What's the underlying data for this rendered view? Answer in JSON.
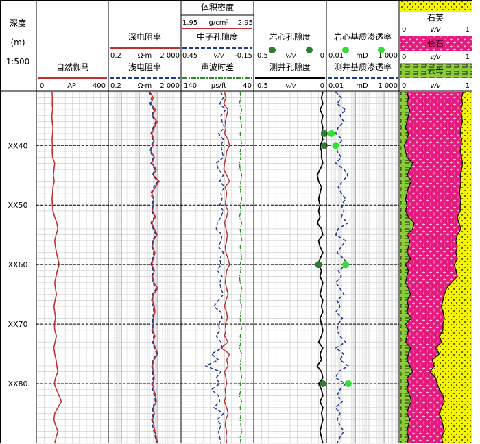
{
  "colors": {
    "gr": "#c0302e",
    "rdeep": "#c0302e",
    "rshallow": "#1f3b8f",
    "den": "#c0302e",
    "neu": "#1f3b8f",
    "ac": "#2e8b2e",
    "phi": "#000000",
    "core_phi": "#2e7d32",
    "core_k": "#33dd33",
    "logk": "#1f3b8f",
    "quartz": "#f5f500",
    "feldspar": "#e6197d",
    "mica": "#8ccc3c"
  },
  "header": {
    "depth": {
      "title": "深度",
      "unit": "(m)",
      "scale": "1:500"
    },
    "track1": {
      "name": "自然伽马",
      "min": "0",
      "unit": "API",
      "max": "400"
    },
    "track2": {
      "deep": {
        "name": "深电阻率",
        "min": "0.2",
        "unit": "Ω·m",
        "max": "2 000"
      },
      "shallow": {
        "name": "浅电阻率",
        "min": "0.2",
        "unit": "Ω·m",
        "max": "2 000"
      }
    },
    "track3": {
      "den": {
        "name": "体积密度",
        "min": "1.95",
        "unit": "g/cm³",
        "max": "2.95"
      },
      "neu": {
        "name": "中子孔隙度",
        "min": "0.45",
        "unit": "v/v",
        "max": "-0.15"
      },
      "ac": {
        "name": "声波时差",
        "min": "140",
        "unit": "μs/ft",
        "max": "40"
      }
    },
    "track4": {
      "core": {
        "name": "岩心孔隙度",
        "min": "0.5",
        "unit": "v/v",
        "max": "0"
      },
      "log": {
        "name": "测井孔隙度",
        "min": "0.5",
        "unit": "v/v",
        "max": "0"
      }
    },
    "track5": {
      "core": {
        "name": "岩心基质渗透率",
        "min": "0.01",
        "unit": "mD",
        "max": "1 000"
      },
      "log": {
        "name": "测井基质渗透率",
        "min": "0.01",
        "unit": "mD",
        "max": "1 000"
      }
    },
    "track6": {
      "quartz": {
        "name": "石英",
        "min": "0",
        "unit": "v/v",
        "max": "1"
      },
      "feldspar": {
        "name": "长石",
        "min": "0",
        "unit": "v/v",
        "max": "1"
      },
      "mica": {
        "name": "云母",
        "min": "0",
        "unit": "v/v",
        "max": "1"
      }
    }
  },
  "chart_data": {
    "type": "line",
    "depth_range": [
      "XX31",
      "XX90"
    ],
    "depth_ticks": [
      "XX40",
      "XX50",
      "XX60",
      "XX70",
      "XX80"
    ],
    "depth": [
      31,
      32,
      33,
      34,
      35,
      36,
      37,
      38,
      39,
      40,
      41,
      42,
      43,
      44,
      45,
      46,
      47,
      48,
      49,
      50,
      51,
      52,
      53,
      54,
      55,
      56,
      57,
      58,
      59,
      60,
      61,
      62,
      63,
      64,
      65,
      66,
      67,
      68,
      69,
      70,
      71,
      72,
      73,
      74,
      75,
      76,
      77,
      78,
      79,
      80,
      81,
      82,
      83,
      84,
      85,
      86,
      87,
      88,
      89,
      90
    ],
    "series": [
      {
        "name": "自然伽马",
        "unit": "API",
        "range": [
          0,
          400
        ],
        "values": [
          85,
          87,
          86,
          88,
          84,
          86,
          90,
          88,
          85,
          87,
          86,
          88,
          100,
          96,
          92,
          98,
          90,
          88,
          85,
          87,
          90,
          100,
          112,
          118,
          108,
          100,
          104,
          110,
          118,
          125,
          115,
          108,
          100,
          104,
          110,
          102,
          96,
          100,
          105,
          98,
          100,
          110,
          102,
          95,
          100,
          108,
          112,
          118,
          104,
          98,
          110,
          125,
          138,
          118,
          100,
          95,
          105,
          118,
          108,
          100
        ]
      },
      {
        "name": "深电阻率",
        "unit": "Ω·m",
        "range": [
          0.2,
          2000
        ],
        "scale": "log",
        "values": [
          40,
          60,
          45,
          80,
          55,
          100,
          70,
          50,
          65,
          55,
          45,
          70,
          50,
          90,
          60,
          130,
          80,
          50,
          65,
          60,
          55,
          80,
          50,
          70,
          100,
          60,
          55,
          75,
          60,
          50,
          70,
          55,
          65,
          110,
          60,
          55,
          70,
          75,
          60,
          65,
          55,
          75,
          60,
          80,
          110,
          65,
          55,
          60,
          70,
          55,
          65,
          80,
          90,
          60,
          70,
          55,
          65,
          75,
          90,
          110
        ]
      },
      {
        "name": "浅电阻率",
        "unit": "Ω·m",
        "range": [
          0.2,
          2000
        ],
        "scale": "log",
        "values": [
          35,
          50,
          40,
          65,
          50,
          85,
          60,
          45,
          55,
          50,
          40,
          60,
          45,
          75,
          55,
          110,
          65,
          45,
          55,
          55,
          50,
          70,
          45,
          60,
          85,
          55,
          50,
          65,
          55,
          45,
          60,
          50,
          55,
          90,
          55,
          50,
          60,
          65,
          55,
          55,
          50,
          65,
          55,
          70,
          95,
          55,
          50,
          55,
          60,
          50,
          55,
          70,
          80,
          55,
          60,
          50,
          55,
          65,
          80,
          95
        ]
      },
      {
        "name": "体积密度",
        "unit": "g/cm³",
        "range": [
          1.95,
          2.95
        ],
        "values": [
          2.55,
          2.57,
          2.54,
          2.6,
          2.58,
          2.56,
          2.57,
          2.55,
          2.6,
          2.62,
          2.58,
          2.57,
          2.55,
          2.54,
          2.58,
          2.62,
          2.56,
          2.58,
          2.57,
          2.56,
          2.6,
          2.58,
          2.55,
          2.57,
          2.59,
          2.58,
          2.56,
          2.57,
          2.6,
          2.62,
          2.58,
          2.57,
          2.56,
          2.58,
          2.6,
          2.57,
          2.55,
          2.58,
          2.59,
          2.56,
          2.57,
          2.55,
          2.6,
          2.5,
          2.62,
          2.58,
          2.6,
          2.55,
          2.57,
          2.58,
          2.56,
          2.57,
          2.55,
          2.58,
          2.6,
          2.57,
          2.56,
          2.58,
          2.57,
          2.58
        ]
      },
      {
        "name": "中子孔隙度",
        "unit": "v/v",
        "range": [
          0.45,
          -0.15
        ],
        "values": [
          0.12,
          0.1,
          0.13,
          0.08,
          0.12,
          0.11,
          0.09,
          0.14,
          0.1,
          0.12,
          0.11,
          0.1,
          0.16,
          0.14,
          0.1,
          0.13,
          0.09,
          0.12,
          0.11,
          0.13,
          0.1,
          0.12,
          0.15,
          0.16,
          0.11,
          0.12,
          0.14,
          0.1,
          0.13,
          0.12,
          0.15,
          0.11,
          0.13,
          0.12,
          0.1,
          0.14,
          0.18,
          0.12,
          0.11,
          0.14,
          0.13,
          0.16,
          0.12,
          0.11,
          0.2,
          0.14,
          0.25,
          0.12,
          0.16,
          0.13,
          0.2,
          0.14,
          0.13,
          0.18,
          0.1,
          0.15,
          0.12,
          0.14,
          0.13,
          0.12
        ]
      },
      {
        "name": "声波时差",
        "unit": "μs/ft",
        "range": [
          140,
          40
        ],
        "values": [
          58,
          57,
          59,
          56,
          58,
          57,
          56,
          58,
          57,
          56,
          58,
          57,
          59,
          58,
          56,
          57,
          58,
          57,
          56,
          58,
          57,
          59,
          56,
          58,
          57,
          56,
          58,
          57,
          56,
          58,
          57,
          59,
          58,
          56,
          57,
          58,
          56,
          57,
          58,
          57,
          56,
          58,
          57,
          59,
          56,
          57,
          58,
          57,
          56,
          58,
          57,
          59,
          56,
          58,
          57,
          58,
          57,
          56,
          58,
          57
        ]
      },
      {
        "name": "测井孔隙度",
        "unit": "v/v",
        "range": [
          0.5,
          0
        ],
        "values": [
          0.02,
          0.03,
          0.02,
          0.04,
          0.02,
          0.03,
          0.02,
          0.03,
          0.02,
          0.04,
          0.03,
          0.03,
          0.02,
          0.04,
          0.06,
          0.05,
          0.03,
          0.04,
          0.05,
          0.04,
          0.05,
          0.04,
          0.06,
          0.03,
          0.02,
          0.05,
          0.04,
          0.02,
          0.04,
          0.05,
          0.03,
          0.04,
          0.02,
          0.03,
          0.04,
          0.02,
          0.03,
          0.02,
          0.04,
          0.03,
          0.02,
          0.03,
          0.05,
          0.02,
          0.04,
          0.03,
          0.06,
          0.03,
          0.02,
          0.05,
          0.03,
          0.02,
          0.04,
          0.02,
          0.03,
          0.02,
          0.03,
          0.04,
          0.03,
          0.02
        ]
      },
      {
        "name": "测井基质渗透率",
        "unit": "mD",
        "range": [
          0.01,
          1000
        ],
        "scale": "log",
        "values": [
          0.04,
          0.1,
          0.05,
          0.2,
          0.08,
          0.15,
          0.06,
          0.04,
          0.12,
          0.06,
          0.05,
          0.1,
          0.04,
          0.15,
          0.3,
          0.12,
          0.06,
          0.1,
          0.2,
          0.1,
          0.15,
          0.1,
          0.3,
          0.06,
          0.04,
          0.2,
          0.1,
          0.05,
          0.15,
          0.25,
          0.06,
          0.1,
          0.04,
          0.08,
          0.15,
          0.05,
          0.08,
          0.04,
          0.12,
          0.06,
          0.05,
          0.08,
          0.2,
          0.04,
          0.15,
          0.08,
          0.3,
          0.06,
          0.04,
          0.2,
          0.08,
          0.05,
          0.12,
          0.04,
          0.08,
          0.05,
          0.08,
          0.15,
          0.08,
          0.05
        ]
      },
      {
        "name": "云母",
        "unit": "v/v",
        "range": [
          0,
          1
        ],
        "cumulative": true,
        "values": [
          0.1,
          0.12,
          0.1,
          0.14,
          0.12,
          0.1,
          0.08,
          0.12,
          0.1,
          0.06,
          0.08,
          0.1,
          0.18,
          0.14,
          0.1,
          0.16,
          0.12,
          0.1,
          0.08,
          0.1,
          0.08,
          0.12,
          0.2,
          0.18,
          0.1,
          0.14,
          0.12,
          0.1,
          0.15,
          0.08,
          0.12,
          0.1,
          0.08,
          0.12,
          0.15,
          0.1,
          0.12,
          0.1,
          0.16,
          0.08,
          0.12,
          0.1,
          0.08,
          0.15,
          0.12,
          0.1,
          0.14,
          0.18,
          0.1,
          0.12,
          0.1,
          0.14,
          0.16,
          0.12,
          0.1,
          0.14,
          0.12,
          0.1,
          0.12,
          0.1
        ]
      },
      {
        "name": "长石",
        "unit": "v/v",
        "range": [
          0,
          1
        ],
        "cumulative": true,
        "values": [
          0.88,
          0.86,
          0.87,
          0.85,
          0.86,
          0.87,
          0.85,
          0.84,
          0.86,
          0.85,
          0.84,
          0.86,
          0.87,
          0.86,
          0.84,
          0.85,
          0.84,
          0.83,
          0.85,
          0.84,
          0.84,
          0.8,
          0.82,
          0.85,
          0.8,
          0.78,
          0.8,
          0.78,
          0.8,
          0.76,
          0.78,
          0.8,
          0.72,
          0.65,
          0.62,
          0.6,
          0.58,
          0.6,
          0.62,
          0.6,
          0.6,
          0.55,
          0.58,
          0.5,
          0.55,
          0.45,
          0.48,
          0.42,
          0.5,
          0.52,
          0.55,
          0.6,
          0.62,
          0.58,
          0.55,
          0.58,
          0.6,
          0.62,
          0.58,
          0.6
        ]
      }
    ],
    "core_points": {
      "岩心孔隙度": [
        [
          38,
          0.01
        ],
        [
          40,
          0.01
        ],
        [
          60,
          0.05
        ],
        [
          80,
          0.02
        ]
      ],
      "岩心基质渗透率": [
        [
          38,
          0.02
        ],
        [
          40,
          0.04
        ],
        [
          60,
          0.2
        ],
        [
          80,
          0.3
        ]
      ]
    }
  }
}
